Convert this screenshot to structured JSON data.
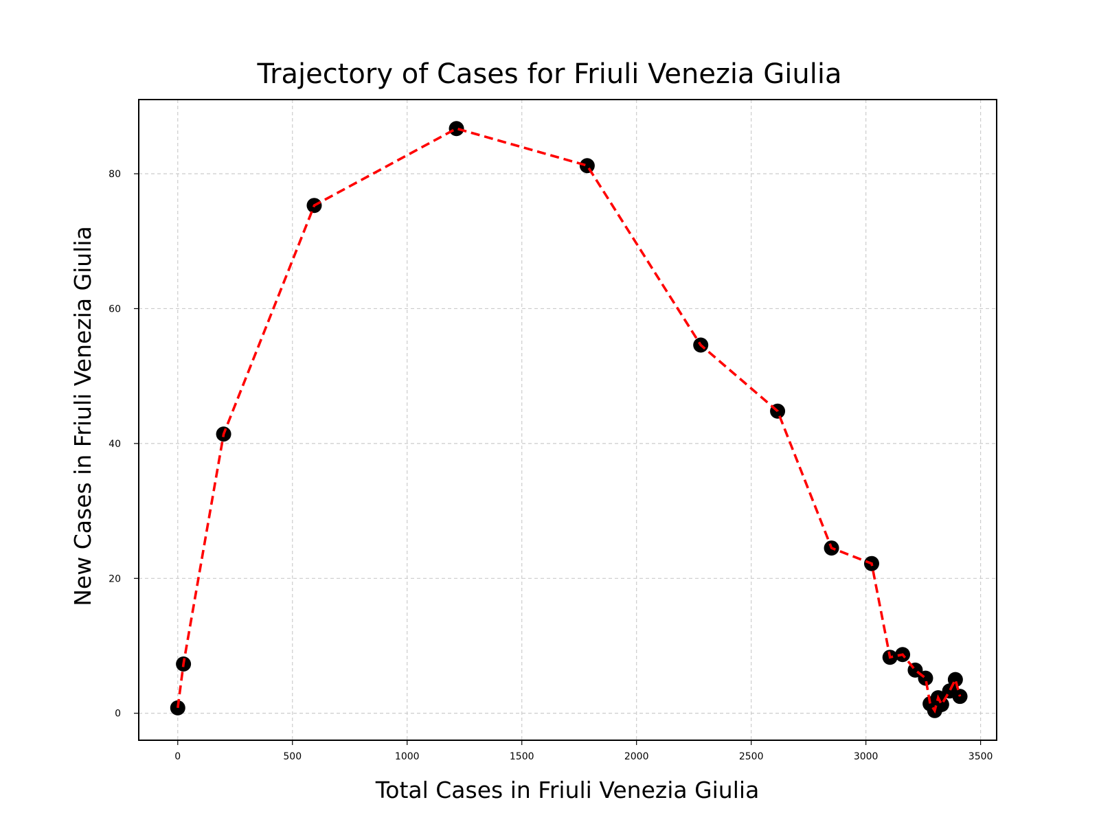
{
  "chart_data": {
    "type": "scatter",
    "title": "Trajectory of Cases for Friuli Venezia Giulia",
    "xlabel": "Total Cases in Friuli Venezia Giulia",
    "ylabel": "New Cases in Friuli Venezia Giulia",
    "xlim": [
      -170,
      3570
    ],
    "ylim": [
      -4,
      91
    ],
    "xticks": [
      0,
      500,
      1000,
      1500,
      2000,
      2500,
      3000,
      3500
    ],
    "yticks": [
      0,
      20,
      40,
      60,
      80
    ],
    "grid": true,
    "legend": "none",
    "colors": {
      "line": "#ff0000",
      "marker": "#000000",
      "grid": "#cccccc"
    },
    "series": [
      {
        "x": [
          0,
          25,
          200,
          595,
          1215,
          1785,
          2280,
          2615,
          2850,
          3025,
          3105,
          3160,
          3215,
          3260,
          3280,
          3300,
          3315,
          3330,
          3365,
          3390,
          3410
        ],
        "y": [
          0.8,
          7.3,
          41.4,
          75.3,
          86.7,
          81.2,
          54.6,
          44.8,
          24.5,
          22.2,
          8.3,
          8.7,
          6.4,
          5.2,
          1.4,
          0.4,
          2.3,
          1.3,
          3.3,
          5.0,
          2.5
        ]
      }
    ]
  }
}
